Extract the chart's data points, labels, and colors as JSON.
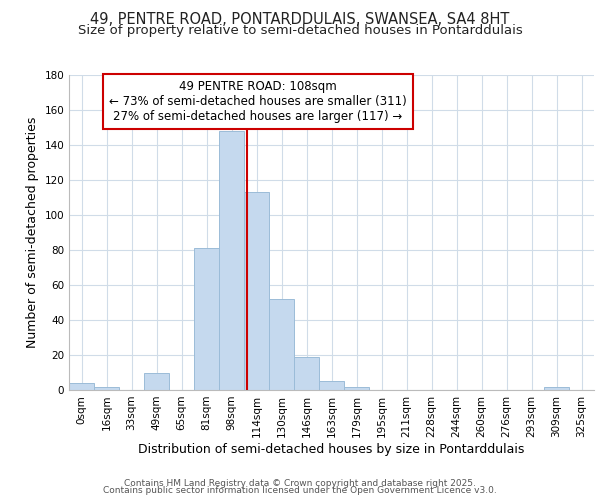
{
  "title_line1": "49, PENTRE ROAD, PONTARDDULAIS, SWANSEA, SA4 8HT",
  "title_line2": "Size of property relative to semi-detached houses in Pontarddulais",
  "xlabel": "Distribution of semi-detached houses by size in Pontarddulais",
  "ylabel": "Number of semi-detached properties",
  "bar_labels": [
    "0sqm",
    "16sqm",
    "33sqm",
    "49sqm",
    "65sqm",
    "81sqm",
    "98sqm",
    "114sqm",
    "130sqm",
    "146sqm",
    "163sqm",
    "179sqm",
    "195sqm",
    "211sqm",
    "228sqm",
    "244sqm",
    "260sqm",
    "276sqm",
    "293sqm",
    "309sqm",
    "325sqm"
  ],
  "bar_values": [
    4,
    2,
    0,
    10,
    0,
    81,
    148,
    113,
    52,
    19,
    5,
    2,
    0,
    0,
    0,
    0,
    0,
    0,
    0,
    2,
    0
  ],
  "bar_color": "#c5d9ee",
  "bar_edge_color": "#9bbcd8",
  "annotation_title": "49 PENTRE ROAD: 108sqm",
  "annotation_line1": "← 73% of semi-detached houses are smaller (311)",
  "annotation_line2": "27% of semi-detached houses are larger (117) →",
  "vline_color": "#cc0000",
  "annotation_box_color": "#cc0000",
  "ylim": [
    0,
    180
  ],
  "yticks": [
    0,
    20,
    40,
    60,
    80,
    100,
    120,
    140,
    160,
    180
  ],
  "footer_line1": "Contains HM Land Registry data © Crown copyright and database right 2025.",
  "footer_line2": "Contains public sector information licensed under the Open Government Licence v3.0.",
  "background_color": "#ffffff",
  "grid_color": "#d0dce8",
  "title_fontsize": 10.5,
  "subtitle_fontsize": 9.5,
  "axis_label_fontsize": 9,
  "tick_fontsize": 7.5,
  "footer_fontsize": 6.5,
  "annotation_fontsize": 8.5
}
